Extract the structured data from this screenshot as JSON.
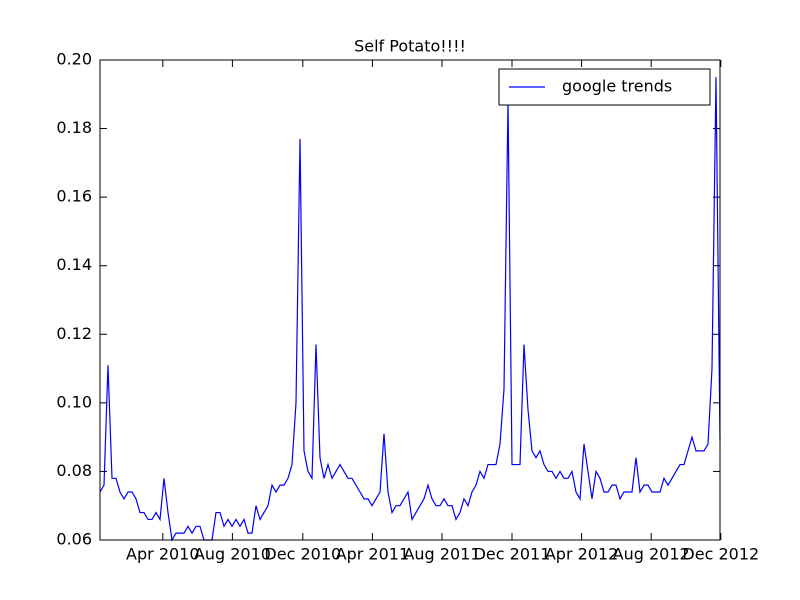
{
  "chart_data": {
    "type": "line",
    "title": "Self Potato!!!!",
    "x": [
      0,
      1,
      2,
      3,
      4,
      5,
      6,
      7,
      8,
      9,
      10,
      11,
      12,
      13,
      14,
      15,
      16,
      17,
      18,
      19,
      20,
      21,
      22,
      23,
      24,
      25,
      26,
      27,
      28,
      29,
      30,
      31,
      32,
      33,
      34,
      35,
      36,
      37,
      38,
      39,
      40,
      41,
      42,
      43,
      44,
      45,
      46,
      47,
      48,
      49,
      50,
      51,
      52,
      53,
      54,
      55,
      56,
      57,
      58,
      59,
      60,
      61,
      62,
      63,
      64,
      65,
      66,
      67,
      68,
      69,
      70,
      71,
      72,
      73,
      74,
      75,
      76,
      77,
      78,
      79,
      80,
      81,
      82,
      83,
      84,
      85,
      86,
      87,
      88,
      89,
      90,
      91,
      92,
      93,
      94,
      95,
      96,
      97,
      98,
      99,
      100,
      101,
      102,
      103,
      104,
      105,
      106,
      107,
      108,
      109,
      110,
      111,
      112,
      113,
      114,
      115,
      116,
      117,
      118,
      119,
      120,
      121,
      122,
      123,
      124,
      125,
      126,
      127,
      128,
      129,
      130,
      131,
      132,
      133,
      134,
      135,
      136,
      137,
      138,
      139,
      140,
      141,
      142,
      143,
      144,
      145,
      146,
      147,
      148,
      149,
      150,
      151,
      152,
      153,
      154,
      155
    ],
    "series": [
      {
        "name": "google trends",
        "color": "#0000ff",
        "values": [
          0.074,
          0.076,
          0.111,
          0.078,
          0.078,
          0.074,
          0.072,
          0.074,
          0.074,
          0.072,
          0.068,
          0.068,
          0.066,
          0.066,
          0.068,
          0.066,
          0.078,
          0.068,
          0.06,
          0.062,
          0.062,
          0.062,
          0.064,
          0.062,
          0.064,
          0.064,
          0.06,
          0.06,
          0.06,
          0.068,
          0.068,
          0.064,
          0.066,
          0.064,
          0.066,
          0.064,
          0.066,
          0.062,
          0.062,
          0.07,
          0.066,
          0.068,
          0.07,
          0.076,
          0.074,
          0.076,
          0.076,
          0.078,
          0.082,
          0.1,
          0.177,
          0.086,
          0.08,
          0.078,
          0.117,
          0.084,
          0.078,
          0.082,
          0.078,
          0.08,
          0.082,
          0.08,
          0.078,
          0.078,
          0.076,
          0.074,
          0.072,
          0.072,
          0.07,
          0.072,
          0.074,
          0.091,
          0.074,
          0.068,
          0.07,
          0.07,
          0.072,
          0.074,
          0.066,
          0.068,
          0.07,
          0.072,
          0.076,
          0.072,
          0.07,
          0.07,
          0.072,
          0.07,
          0.07,
          0.066,
          0.068,
          0.072,
          0.07,
          0.074,
          0.076,
          0.08,
          0.078,
          0.082,
          0.082,
          0.082,
          0.088,
          0.104,
          0.188,
          0.082,
          0.082,
          0.082,
          0.117,
          0.098,
          0.086,
          0.084,
          0.086,
          0.082,
          0.08,
          0.08,
          0.078,
          0.08,
          0.078,
          0.078,
          0.08,
          0.074,
          0.072,
          0.088,
          0.08,
          0.072,
          0.08,
          0.078,
          0.074,
          0.074,
          0.076,
          0.076,
          0.072,
          0.074,
          0.074,
          0.074,
          0.084,
          0.074,
          0.076,
          0.076,
          0.074,
          0.074,
          0.074,
          0.078,
          0.076,
          0.078,
          0.08,
          0.082,
          0.082,
          0.086,
          0.09,
          0.086,
          0.086,
          0.086,
          0.088,
          0.11,
          0.195,
          0.089
        ]
      }
    ],
    "xlim": [
      0,
      155
    ],
    "xticks": [
      {
        "value": 15.7,
        "label": "Apr 2010"
      },
      {
        "value": 33.1,
        "label": "Aug 2010"
      },
      {
        "value": 50.7,
        "label": "Dec 2010"
      },
      {
        "value": 68.1,
        "label": "Apr 2011"
      },
      {
        "value": 85.5,
        "label": "Aug 2011"
      },
      {
        "value": 103,
        "label": "Dec 2011"
      },
      {
        "value": 120.4,
        "label": "Apr 2012"
      },
      {
        "value": 137.8,
        "label": "Aug 2012"
      },
      {
        "value": 155.2,
        "label": "Dec 2012"
      }
    ],
    "ylim": [
      0.06,
      0.2
    ],
    "yticks": [
      0.06,
      0.08,
      {
        "value": 0.1,
        "label": "0.10"
      },
      0.12,
      0.14,
      0.16,
      0.18,
      {
        "value": 0.2,
        "label": "0.20"
      }
    ],
    "legend": "upper right"
  }
}
